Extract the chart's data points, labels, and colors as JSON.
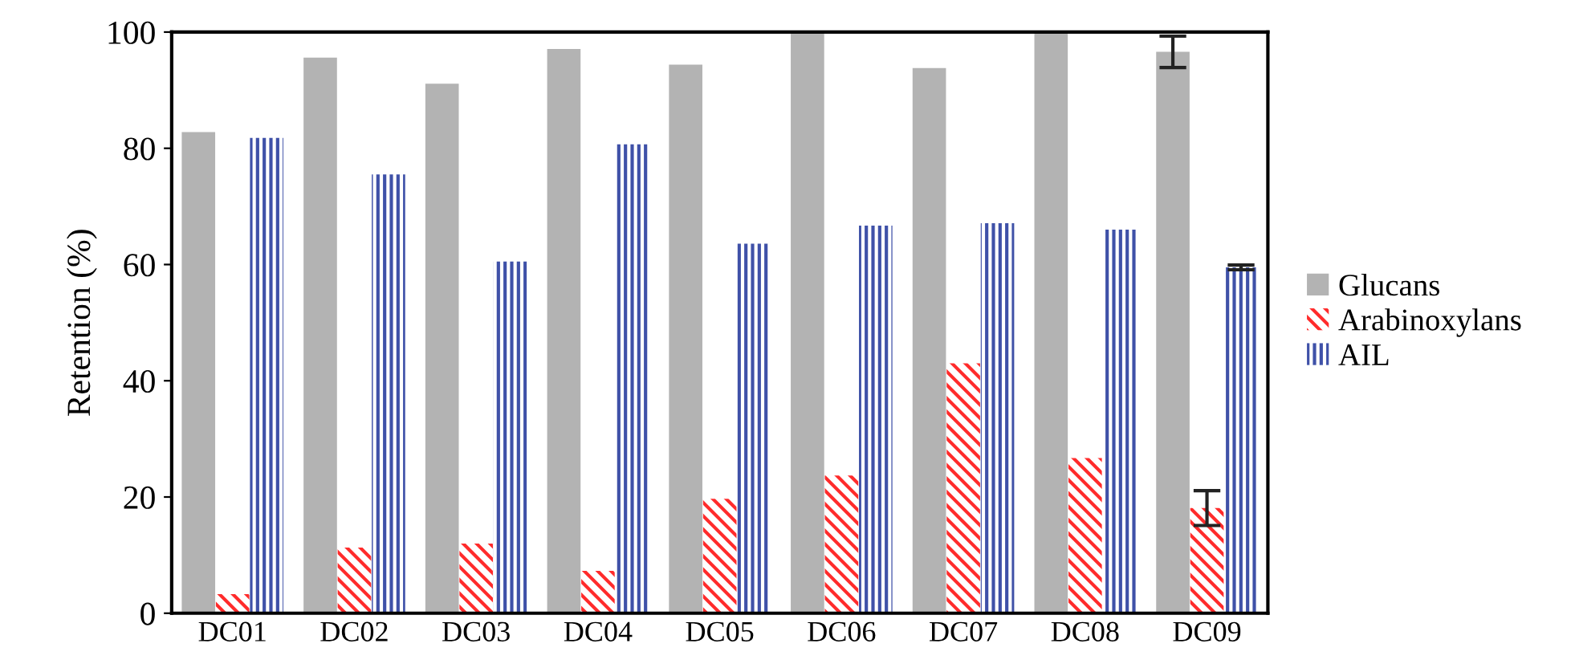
{
  "chart_data": {
    "type": "bar",
    "ylabel": "Retention (%)",
    "categories": [
      "DC01",
      "DC02",
      "DC03",
      "DC04",
      "DC05",
      "DC06",
      "DC07",
      "DC08",
      "DC09"
    ],
    "series": [
      {
        "name": "Glucans",
        "color": "#b3b3b3",
        "values": [
          82.8,
          95.6,
          91.1,
          97.1,
          94.4,
          99.8,
          93.8,
          99.9,
          96.6
        ],
        "errors": [
          null,
          null,
          null,
          null,
          null,
          null,
          null,
          null,
          2.7
        ]
      },
      {
        "name": "Arabinoxylans",
        "color": "#ff2b2b",
        "values": [
          3.3,
          11.3,
          12.0,
          7.3,
          19.7,
          23.7,
          43.0,
          26.7,
          18.1
        ],
        "errors": [
          null,
          null,
          null,
          null,
          null,
          null,
          null,
          null,
          3.0
        ]
      },
      {
        "name": "AIL",
        "color": "#3f51a8",
        "values": [
          81.8,
          75.5,
          60.5,
          80.7,
          63.6,
          66.7,
          67.1,
          66.0,
          59.5
        ],
        "errors": [
          null,
          null,
          null,
          null,
          null,
          null,
          null,
          null,
          0.4
        ]
      }
    ],
    "ylim": [
      0,
      100
    ],
    "yticks": [
      0,
      20,
      40,
      60,
      80,
      100
    ],
    "grid": false,
    "legend": "right"
  }
}
